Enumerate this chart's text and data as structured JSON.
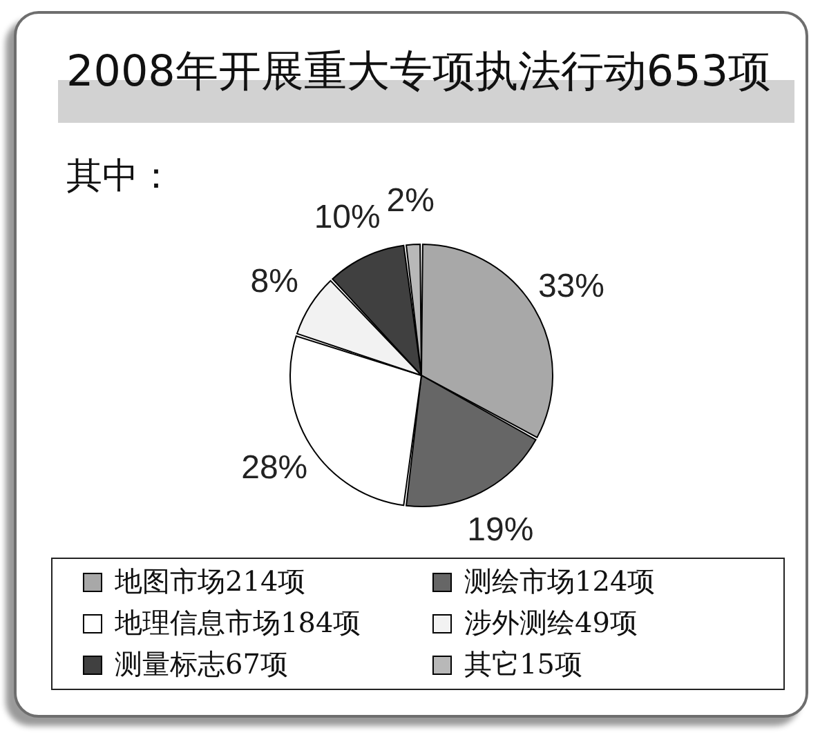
{
  "chart_data": {
    "type": "pie",
    "title": "2008年开展重大专项执法行动653项",
    "subtitle": "其中：",
    "categories": [
      "地图市场214项",
      "测绘市场124项",
      "地理信息市场184项",
      "涉外测绘49项",
      "测量标志67项",
      "其它15项"
    ],
    "values": [
      33,
      19,
      28,
      8,
      10,
      2
    ],
    "value_labels": [
      "33%",
      "19%",
      "28%",
      "8%",
      "10%",
      "2%"
    ],
    "colors": [
      "#a8a8a8",
      "#666666",
      "#ffffff",
      "#f2f2f2",
      "#404040",
      "#b8b8b8"
    ],
    "legend": "bottom"
  }
}
